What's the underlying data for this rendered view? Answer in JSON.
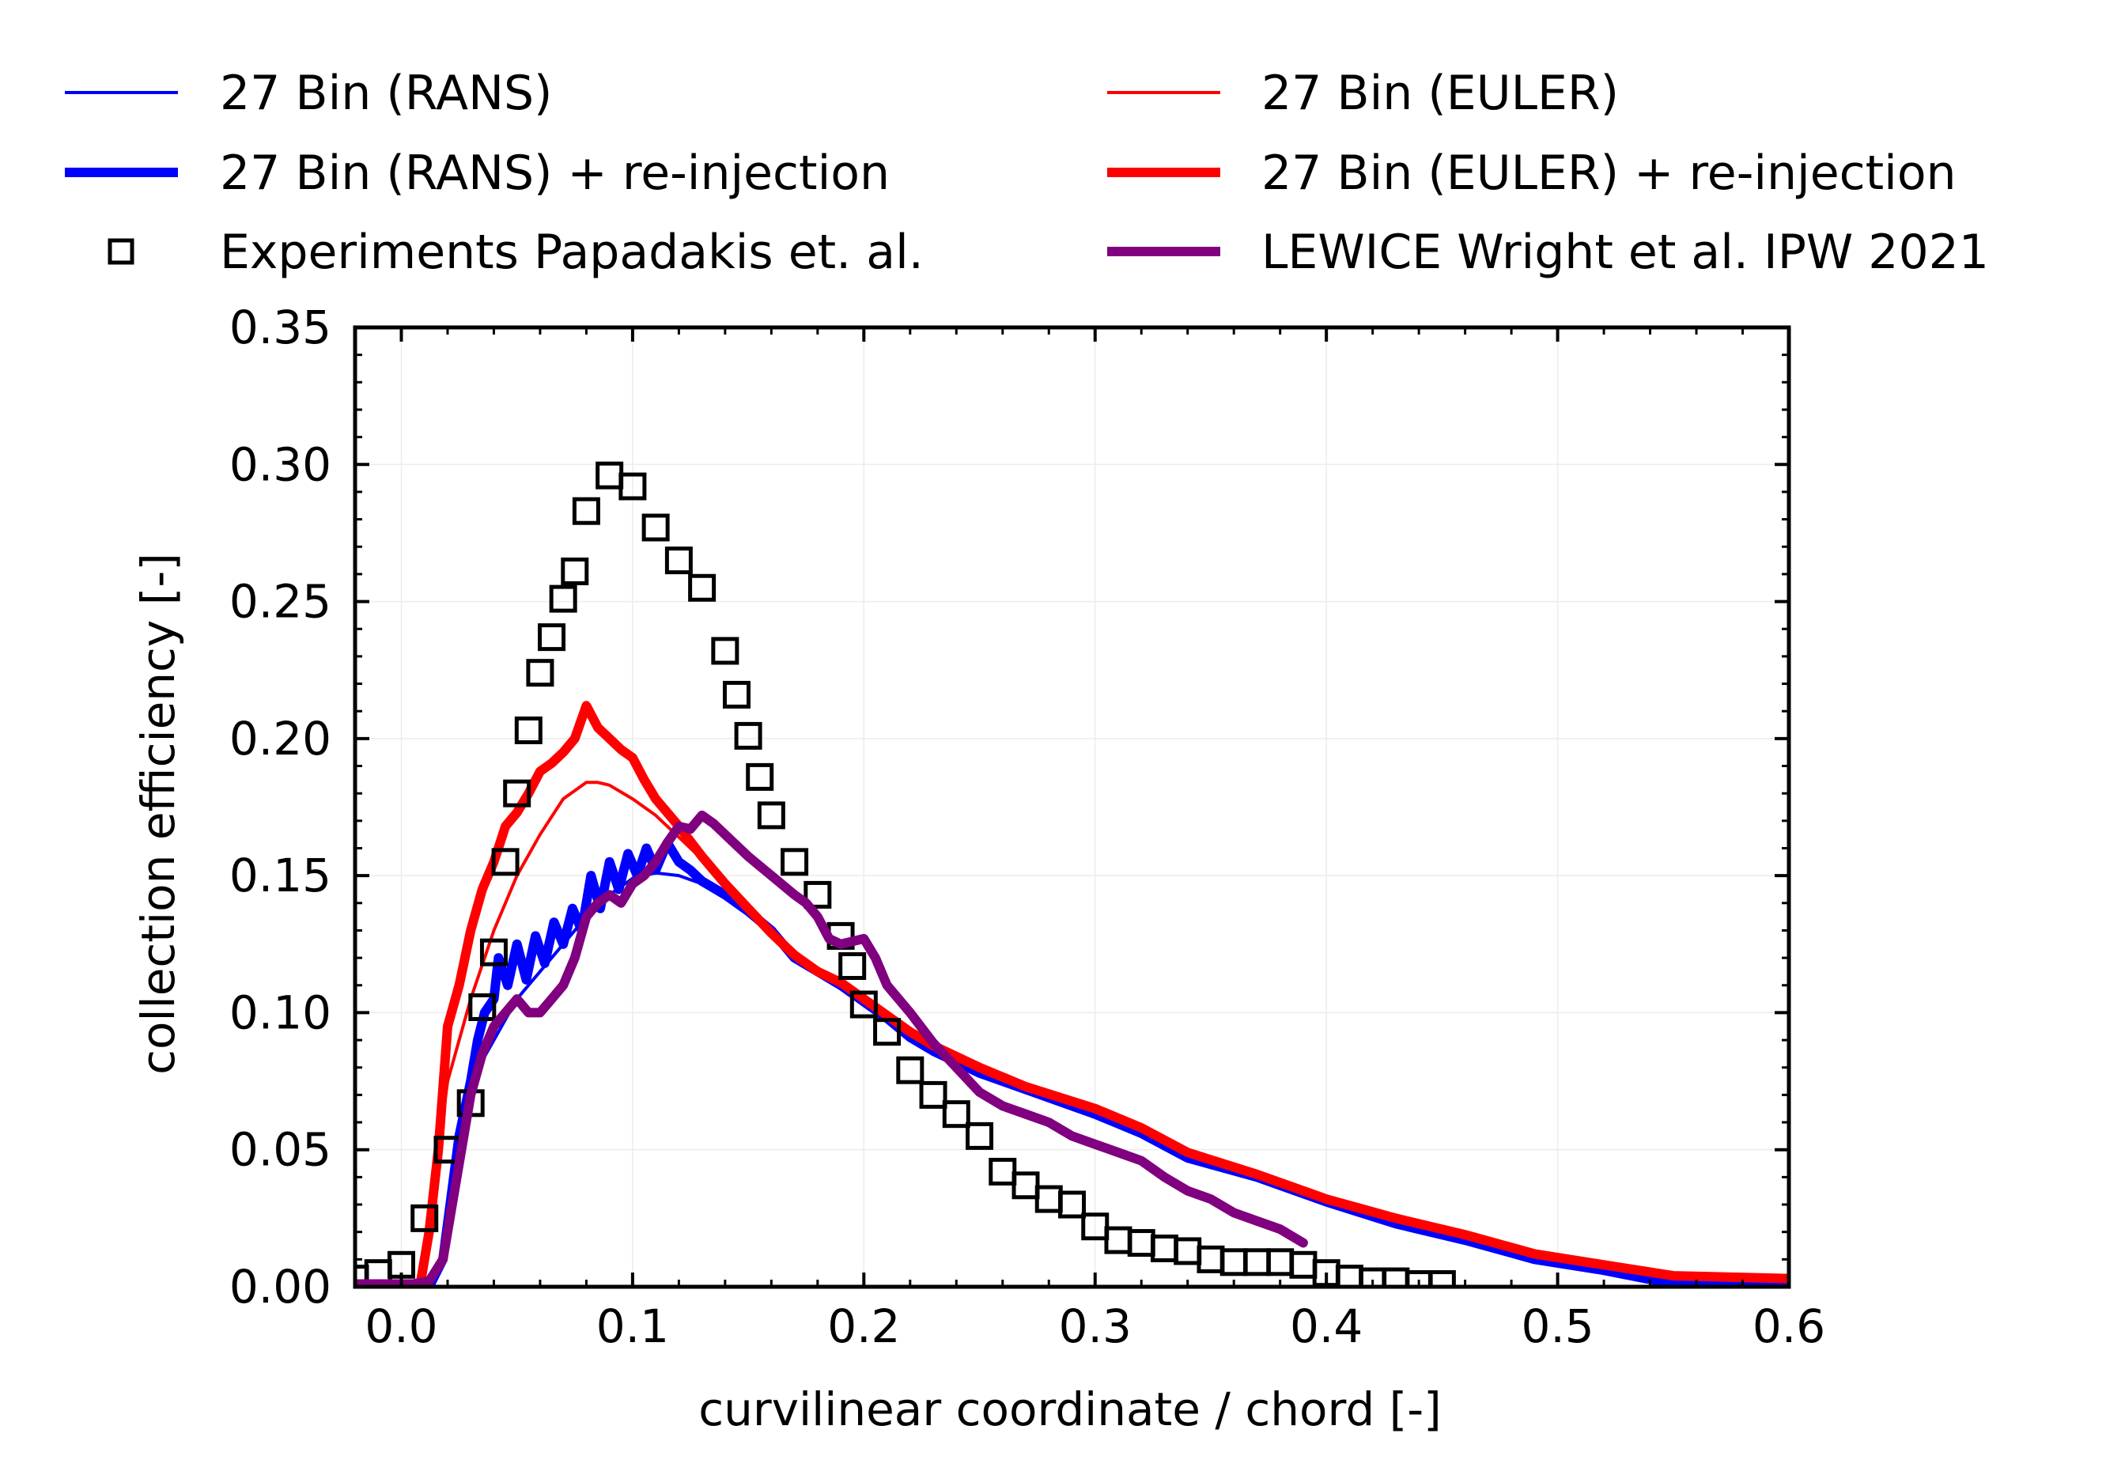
{
  "chart_data": {
    "type": "line",
    "title": "",
    "xlabel": "curvilinear coordinate / chord [-]",
    "ylabel": "collection efficiency [-]",
    "xlim": [
      -0.02,
      0.6
    ],
    "ylim": [
      0.0,
      0.35
    ],
    "xticks": [
      0.0,
      0.1,
      0.2,
      0.3,
      0.4,
      0.5,
      0.6
    ],
    "xtick_labels": [
      "0.0",
      "0.1",
      "0.2",
      "0.3",
      "0.4",
      "0.5",
      "0.6"
    ],
    "yticks": [
      0.0,
      0.05,
      0.1,
      0.15,
      0.2,
      0.25,
      0.3,
      0.35
    ],
    "ytick_labels": [
      "0.00",
      "0.05",
      "0.10",
      "0.15",
      "0.20",
      "0.25",
      "0.30",
      "0.35"
    ],
    "grid": true,
    "legend_position": "top, outside plot, two columns",
    "series": [
      {
        "name": "27 Bin (RANS)",
        "color": "#0000ff",
        "style": "thin",
        "points": [
          [
            -0.02,
            0.0
          ],
          [
            0.012,
            0.0
          ],
          [
            0.018,
            0.01
          ],
          [
            0.025,
            0.06
          ],
          [
            0.03,
            0.075
          ],
          [
            0.04,
            0.09
          ],
          [
            0.05,
            0.105
          ],
          [
            0.06,
            0.115
          ],
          [
            0.07,
            0.125
          ],
          [
            0.08,
            0.135
          ],
          [
            0.09,
            0.143
          ],
          [
            0.1,
            0.149
          ],
          [
            0.11,
            0.151
          ],
          [
            0.12,
            0.15
          ],
          [
            0.13,
            0.147
          ],
          [
            0.14,
            0.142
          ],
          [
            0.15,
            0.136
          ],
          [
            0.16,
            0.128
          ],
          [
            0.17,
            0.12
          ],
          [
            0.18,
            0.115
          ],
          [
            0.19,
            0.11
          ],
          [
            0.2,
            0.103
          ],
          [
            0.21,
            0.097
          ],
          [
            0.22,
            0.09
          ],
          [
            0.23,
            0.085
          ],
          [
            0.25,
            0.077
          ],
          [
            0.27,
            0.071
          ],
          [
            0.3,
            0.062
          ],
          [
            0.32,
            0.055
          ],
          [
            0.34,
            0.046
          ],
          [
            0.37,
            0.04
          ],
          [
            0.4,
            0.031
          ],
          [
            0.43,
            0.023
          ],
          [
            0.46,
            0.017
          ],
          [
            0.49,
            0.01
          ],
          [
            0.52,
            0.006
          ],
          [
            0.55,
            0.0
          ],
          [
            0.6,
            0.0
          ]
        ]
      },
      {
        "name": "27 Bin (RANS) + re-injection",
        "color": "#0000ff",
        "style": "thick",
        "points": [
          [
            -0.02,
            0.0
          ],
          [
            0.012,
            0.0
          ],
          [
            0.018,
            0.01
          ],
          [
            0.025,
            0.055
          ],
          [
            0.03,
            0.075
          ],
          [
            0.033,
            0.09
          ],
          [
            0.036,
            0.1
          ],
          [
            0.04,
            0.105
          ],
          [
            0.042,
            0.12
          ],
          [
            0.046,
            0.11
          ],
          [
            0.05,
            0.125
          ],
          [
            0.054,
            0.112
          ],
          [
            0.058,
            0.128
          ],
          [
            0.062,
            0.118
          ],
          [
            0.066,
            0.133
          ],
          [
            0.07,
            0.125
          ],
          [
            0.074,
            0.138
          ],
          [
            0.078,
            0.13
          ],
          [
            0.082,
            0.15
          ],
          [
            0.086,
            0.138
          ],
          [
            0.09,
            0.155
          ],
          [
            0.094,
            0.145
          ],
          [
            0.098,
            0.158
          ],
          [
            0.102,
            0.15
          ],
          [
            0.106,
            0.16
          ],
          [
            0.11,
            0.152
          ],
          [
            0.115,
            0.162
          ],
          [
            0.12,
            0.155
          ],
          [
            0.125,
            0.152
          ],
          [
            0.13,
            0.148
          ],
          [
            0.14,
            0.143
          ],
          [
            0.15,
            0.137
          ],
          [
            0.16,
            0.13
          ],
          [
            0.17,
            0.12
          ],
          [
            0.18,
            0.115
          ],
          [
            0.19,
            0.11
          ],
          [
            0.2,
            0.104
          ],
          [
            0.21,
            0.098
          ],
          [
            0.22,
            0.091
          ],
          [
            0.23,
            0.086
          ],
          [
            0.25,
            0.078
          ],
          [
            0.27,
            0.072
          ],
          [
            0.3,
            0.063
          ],
          [
            0.32,
            0.056
          ],
          [
            0.34,
            0.047
          ],
          [
            0.37,
            0.04
          ],
          [
            0.4,
            0.031
          ],
          [
            0.43,
            0.023
          ],
          [
            0.46,
            0.017
          ],
          [
            0.49,
            0.01
          ],
          [
            0.52,
            0.006
          ],
          [
            0.55,
            0.001
          ],
          [
            0.6,
            0.0
          ]
        ]
      },
      {
        "name": "Experiments Papadakis et. al.",
        "color": "#000000",
        "style": "markers",
        "points": [
          [
            -0.02,
            0.003
          ],
          [
            -0.01,
            0.005
          ],
          [
            0.0,
            0.008
          ],
          [
            0.01,
            0.025
          ],
          [
            0.02,
            0.05
          ],
          [
            0.03,
            0.067
          ],
          [
            0.035,
            0.102
          ],
          [
            0.04,
            0.122
          ],
          [
            0.045,
            0.155
          ],
          [
            0.05,
            0.18
          ],
          [
            0.055,
            0.203
          ],
          [
            0.06,
            0.224
          ],
          [
            0.065,
            0.237
          ],
          [
            0.07,
            0.251
          ],
          [
            0.075,
            0.261
          ],
          [
            0.08,
            0.283
          ],
          [
            0.09,
            0.296
          ],
          [
            0.1,
            0.292
          ],
          [
            0.11,
            0.277
          ],
          [
            0.12,
            0.265
          ],
          [
            0.13,
            0.255
          ],
          [
            0.14,
            0.232
          ],
          [
            0.145,
            0.216
          ],
          [
            0.15,
            0.201
          ],
          [
            0.155,
            0.186
          ],
          [
            0.16,
            0.172
          ],
          [
            0.17,
            0.155
          ],
          [
            0.18,
            0.143
          ],
          [
            0.19,
            0.128
          ],
          [
            0.195,
            0.117
          ],
          [
            0.2,
            0.103
          ],
          [
            0.21,
            0.093
          ],
          [
            0.22,
            0.079
          ],
          [
            0.23,
            0.07
          ],
          [
            0.24,
            0.063
          ],
          [
            0.25,
            0.055
          ],
          [
            0.26,
            0.042
          ],
          [
            0.27,
            0.037
          ],
          [
            0.28,
            0.032
          ],
          [
            0.29,
            0.03
          ],
          [
            0.3,
            0.022
          ],
          [
            0.31,
            0.017
          ],
          [
            0.32,
            0.016
          ],
          [
            0.33,
            0.014
          ],
          [
            0.34,
            0.013
          ],
          [
            0.35,
            0.01
          ],
          [
            0.36,
            0.009
          ],
          [
            0.37,
            0.009
          ],
          [
            0.38,
            0.009
          ],
          [
            0.39,
            0.008
          ],
          [
            0.4,
            0.005
          ],
          [
            0.41,
            0.003
          ],
          [
            0.42,
            0.002
          ],
          [
            0.43,
            0.002
          ],
          [
            0.44,
            0.001
          ],
          [
            0.45,
            0.001
          ]
        ]
      },
      {
        "name": "27 Bin (EULER)",
        "color": "#ff0000",
        "style": "thin",
        "points": [
          [
            -0.02,
            0.0
          ],
          [
            0.008,
            0.0
          ],
          [
            0.013,
            0.03
          ],
          [
            0.02,
            0.075
          ],
          [
            0.03,
            0.105
          ],
          [
            0.04,
            0.13
          ],
          [
            0.05,
            0.15
          ],
          [
            0.06,
            0.165
          ],
          [
            0.07,
            0.178
          ],
          [
            0.08,
            0.184
          ],
          [
            0.085,
            0.184
          ],
          [
            0.09,
            0.183
          ],
          [
            0.1,
            0.178
          ],
          [
            0.11,
            0.172
          ],
          [
            0.12,
            0.164
          ],
          [
            0.13,
            0.156
          ],
          [
            0.14,
            0.147
          ],
          [
            0.15,
            0.138
          ],
          [
            0.16,
            0.129
          ],
          [
            0.17,
            0.121
          ],
          [
            0.18,
            0.115
          ],
          [
            0.19,
            0.111
          ],
          [
            0.2,
            0.105
          ],
          [
            0.21,
            0.099
          ],
          [
            0.22,
            0.093
          ],
          [
            0.23,
            0.088
          ],
          [
            0.25,
            0.08
          ],
          [
            0.27,
            0.073
          ],
          [
            0.3,
            0.064
          ],
          [
            0.32,
            0.056
          ],
          [
            0.34,
            0.047
          ],
          [
            0.37,
            0.04
          ],
          [
            0.4,
            0.032
          ],
          [
            0.43,
            0.024
          ],
          [
            0.46,
            0.018
          ],
          [
            0.49,
            0.011
          ],
          [
            0.52,
            0.007
          ],
          [
            0.55,
            0.003
          ],
          [
            0.6,
            0.002
          ]
        ]
      },
      {
        "name": "27 Bin (EULER) + re-injection",
        "color": "#ff0000",
        "style": "thick",
        "points": [
          [
            -0.02,
            0.0
          ],
          [
            0.008,
            0.0
          ],
          [
            0.012,
            0.02
          ],
          [
            0.016,
            0.05
          ],
          [
            0.02,
            0.095
          ],
          [
            0.025,
            0.11
          ],
          [
            0.03,
            0.13
          ],
          [
            0.035,
            0.145
          ],
          [
            0.04,
            0.155
          ],
          [
            0.045,
            0.168
          ],
          [
            0.05,
            0.173
          ],
          [
            0.055,
            0.18
          ],
          [
            0.06,
            0.188
          ],
          [
            0.065,
            0.191
          ],
          [
            0.07,
            0.195
          ],
          [
            0.075,
            0.2
          ],
          [
            0.08,
            0.212
          ],
          [
            0.085,
            0.204
          ],
          [
            0.09,
            0.2
          ],
          [
            0.095,
            0.196
          ],
          [
            0.1,
            0.193
          ],
          [
            0.105,
            0.185
          ],
          [
            0.11,
            0.178
          ],
          [
            0.12,
            0.168
          ],
          [
            0.13,
            0.157
          ],
          [
            0.14,
            0.147
          ],
          [
            0.15,
            0.138
          ],
          [
            0.16,
            0.129
          ],
          [
            0.17,
            0.121
          ],
          [
            0.18,
            0.115
          ],
          [
            0.19,
            0.111
          ],
          [
            0.2,
            0.105
          ],
          [
            0.21,
            0.099
          ],
          [
            0.22,
            0.093
          ],
          [
            0.23,
            0.088
          ],
          [
            0.25,
            0.08
          ],
          [
            0.27,
            0.073
          ],
          [
            0.3,
            0.065
          ],
          [
            0.32,
            0.058
          ],
          [
            0.34,
            0.049
          ],
          [
            0.37,
            0.041
          ],
          [
            0.4,
            0.032
          ],
          [
            0.43,
            0.025
          ],
          [
            0.46,
            0.019
          ],
          [
            0.49,
            0.012
          ],
          [
            0.52,
            0.008
          ],
          [
            0.55,
            0.004
          ],
          [
            0.6,
            0.003
          ]
        ]
      },
      {
        "name": "LEWICE Wright et al. IPW 2021",
        "color": "#800080",
        "style": "thick",
        "points": [
          [
            -0.02,
            0.001
          ],
          [
            0.005,
            0.001
          ],
          [
            0.012,
            0.002
          ],
          [
            0.018,
            0.01
          ],
          [
            0.022,
            0.03
          ],
          [
            0.026,
            0.05
          ],
          [
            0.03,
            0.07
          ],
          [
            0.035,
            0.085
          ],
          [
            0.04,
            0.095
          ],
          [
            0.045,
            0.1
          ],
          [
            0.05,
            0.105
          ],
          [
            0.055,
            0.1
          ],
          [
            0.06,
            0.1
          ],
          [
            0.065,
            0.105
          ],
          [
            0.07,
            0.11
          ],
          [
            0.075,
            0.12
          ],
          [
            0.08,
            0.135
          ],
          [
            0.085,
            0.14
          ],
          [
            0.09,
            0.143
          ],
          [
            0.095,
            0.14
          ],
          [
            0.1,
            0.147
          ],
          [
            0.105,
            0.15
          ],
          [
            0.11,
            0.155
          ],
          [
            0.115,
            0.162
          ],
          [
            0.12,
            0.168
          ],
          [
            0.125,
            0.167
          ],
          [
            0.13,
            0.172
          ],
          [
            0.135,
            0.169
          ],
          [
            0.14,
            0.165
          ],
          [
            0.15,
            0.157
          ],
          [
            0.16,
            0.15
          ],
          [
            0.17,
            0.143
          ],
          [
            0.175,
            0.14
          ],
          [
            0.18,
            0.135
          ],
          [
            0.185,
            0.127
          ],
          [
            0.19,
            0.125
          ],
          [
            0.2,
            0.127
          ],
          [
            0.205,
            0.12
          ],
          [
            0.21,
            0.11
          ],
          [
            0.22,
            0.1
          ],
          [
            0.23,
            0.089
          ],
          [
            0.24,
            0.08
          ],
          [
            0.25,
            0.071
          ],
          [
            0.26,
            0.066
          ],
          [
            0.27,
            0.063
          ],
          [
            0.28,
            0.06
          ],
          [
            0.29,
            0.055
          ],
          [
            0.3,
            0.052
          ],
          [
            0.31,
            0.049
          ],
          [
            0.32,
            0.046
          ],
          [
            0.33,
            0.04
          ],
          [
            0.34,
            0.035
          ],
          [
            0.35,
            0.032
          ],
          [
            0.36,
            0.027
          ],
          [
            0.37,
            0.024
          ],
          [
            0.38,
            0.021
          ],
          [
            0.39,
            0.016
          ]
        ]
      }
    ]
  }
}
